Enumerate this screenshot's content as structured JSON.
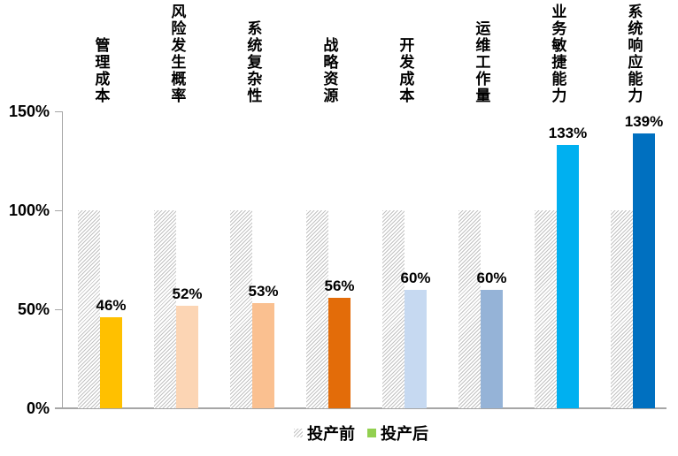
{
  "chart_data": {
    "type": "bar",
    "title": "",
    "categories": [
      "管理成本",
      "风险发生概率",
      "系统复杂性",
      "战略资源",
      "开发成本",
      "运维工作量",
      "业务敏捷能力",
      "系统响应能力"
    ],
    "series": [
      {
        "name": "投产前",
        "values": [
          100,
          100,
          100,
          100,
          100,
          100,
          100,
          100
        ],
        "fill": "hatched",
        "hatch_color": "#C2C2C2"
      },
      {
        "name": "投产后",
        "values": [
          46,
          52,
          53,
          56,
          60,
          60,
          133,
          139
        ],
        "bar_colors": [
          "#FFC000",
          "#FCD5B4",
          "#FAC090",
          "#E36C09",
          "#C6D9F1",
          "#95B3D7",
          "#00B0F0",
          "#0070C0"
        ],
        "legend_swatch_color": "#92D050"
      }
    ],
    "value_labels": [
      "46%",
      "52%",
      "53%",
      "56%",
      "60%",
      "60%",
      "133%",
      "139%"
    ],
    "y_ticks": [
      {
        "value": 0,
        "label": "0%"
      },
      {
        "value": 50,
        "label": "50%"
      },
      {
        "value": 100,
        "label": "100%"
      },
      {
        "value": 150,
        "label": "150%"
      }
    ],
    "ylim": [
      0,
      150
    ],
    "grid": false,
    "legend_position": "bottom",
    "axis_color": "#A6A6A6",
    "text_color": "#000000"
  }
}
